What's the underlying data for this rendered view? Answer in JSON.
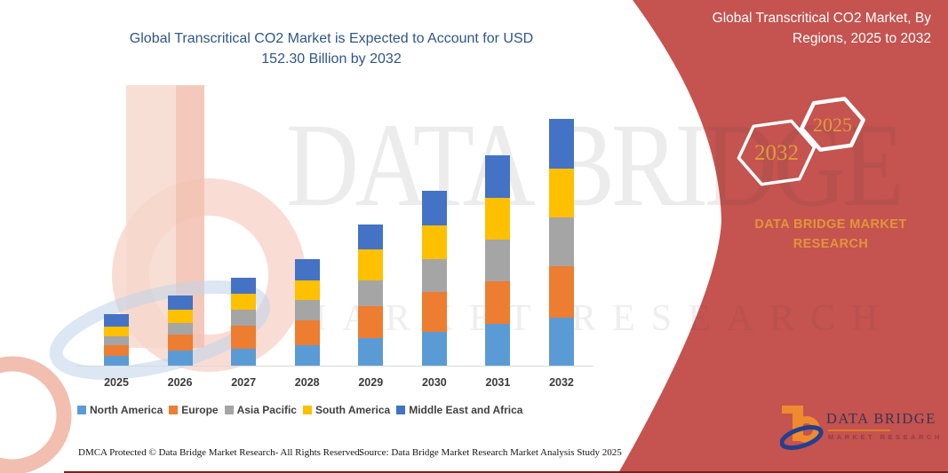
{
  "title": {
    "line1": "Global Transcritical CO2 Market is Expected to Account for USD",
    "line2": "152.30 Billion by 2032"
  },
  "chart_data": {
    "type": "bar",
    "stacked": true,
    "title": "Global Transcritical CO2 Market is Expected to Account for USD 152.30 Billion by 2032",
    "unit": "USD Billion",
    "xlabel": "Year",
    "ylabel": "",
    "y_axis_visible": false,
    "gridlines": false,
    "legend_position": "bottom",
    "categories": [
      "2025",
      "2026",
      "2027",
      "2028",
      "2029",
      "2030",
      "2031",
      "2032"
    ],
    "series": [
      {
        "name": "North America",
        "color": "#5B9BD5",
        "values": [
          6.0,
          9.1,
          10.4,
          12.4,
          17.0,
          21.0,
          25.5,
          29.7
        ]
      },
      {
        "name": "Europe",
        "color": "#ED7D31",
        "values": [
          6.7,
          10.1,
          14.2,
          15.5,
          19.5,
          24.2,
          26.5,
          31.4
        ]
      },
      {
        "name": "Asia Pacific",
        "color": "#A5A5A5",
        "values": [
          5.5,
          7.1,
          10.0,
          12.4,
          16.0,
          20.5,
          26.0,
          30.1
        ]
      },
      {
        "name": "South America",
        "color": "#FFC000",
        "values": [
          6.0,
          8.4,
          10.0,
          12.2,
          19.2,
          21.0,
          25.6,
          30.5
        ]
      },
      {
        "name": "Middle East and Africa",
        "color": "#4472C4",
        "values": [
          7.5,
          8.6,
          9.5,
          13.1,
          15.2,
          21.3,
          26.3,
          30.6
        ]
      }
    ],
    "total_2032": 152.3
  },
  "panel": {
    "bg_color": "#C5534F",
    "title_line1": "Global Transcritical CO2 Market, By",
    "title_line2": "Regions, 2025 to 2032",
    "hexagons": [
      {
        "label": "2032"
      },
      {
        "label": "2025"
      }
    ],
    "brand_line1": "DATA BRIDGE MARKET",
    "brand_line2": "RESEARCH",
    "accent_color": "#DF9C3E"
  },
  "logo": {
    "name_text": "DATA BRIDGE",
    "sub_text": "MARKET RESEARCH"
  },
  "watermark": {
    "big_text": "DATA BRIDGE",
    "sub_text": "MARKET RESEARCH"
  },
  "footer": {
    "dmca": "DMCA Protected © Data Bridge Market Research-  All Rights Reserved.",
    "source": "Source: Data Bridge Market Research  Market Analysis Study 2025"
  }
}
